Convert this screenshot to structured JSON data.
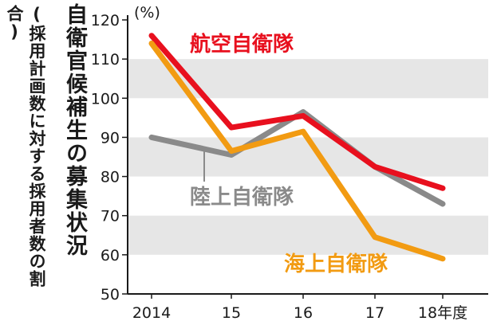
{
  "title": "自衛官候補生の募集状況",
  "subtitle": "(採用計画数に対する採用者数の割合)",
  "chart_data": {
    "type": "line",
    "categories": [
      "2014",
      "15",
      "16",
      "17",
      "18年度"
    ],
    "ylim": [
      50,
      120
    ],
    "yticks": [
      50,
      60,
      70,
      80,
      90,
      100,
      110,
      120
    ],
    "ylabel": "(%)",
    "bands": [
      [
        60,
        70
      ],
      [
        80,
        90
      ],
      [
        100,
        110
      ]
    ],
    "grid": false,
    "series": [
      {
        "name": "航空自衛隊",
        "color": "#e8101e",
        "values": [
          116,
          92.5,
          95.5,
          82.5,
          77
        ]
      },
      {
        "name": "陸上自衛隊",
        "color": "#8a8a8a",
        "values": [
          90,
          85.5,
          96.5,
          82.5,
          73
        ]
      },
      {
        "name": "海上自衛隊",
        "color": "#f29b12",
        "values": [
          114,
          86.5,
          91.5,
          64.5,
          59
        ]
      }
    ]
  },
  "colors": {
    "band": "#e6e6e6",
    "axis": "#1a1a1a"
  }
}
